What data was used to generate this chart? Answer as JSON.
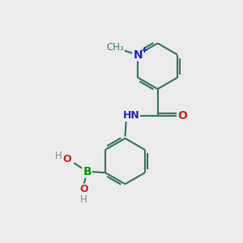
{
  "background_color": "#ebebeb",
  "bond_color": "#3a7a6a",
  "bond_width": 1.6,
  "atom_colors": {
    "N_plus": "#2222cc",
    "N": "#2222cc",
    "O": "#cc2222",
    "B": "#009900",
    "H_label": "#888888"
  },
  "font_size": 9,
  "fig_size": [
    3.0,
    3.0
  ],
  "dpi": 100,
  "xlim": [
    0,
    10
  ],
  "ylim": [
    0,
    10
  ]
}
